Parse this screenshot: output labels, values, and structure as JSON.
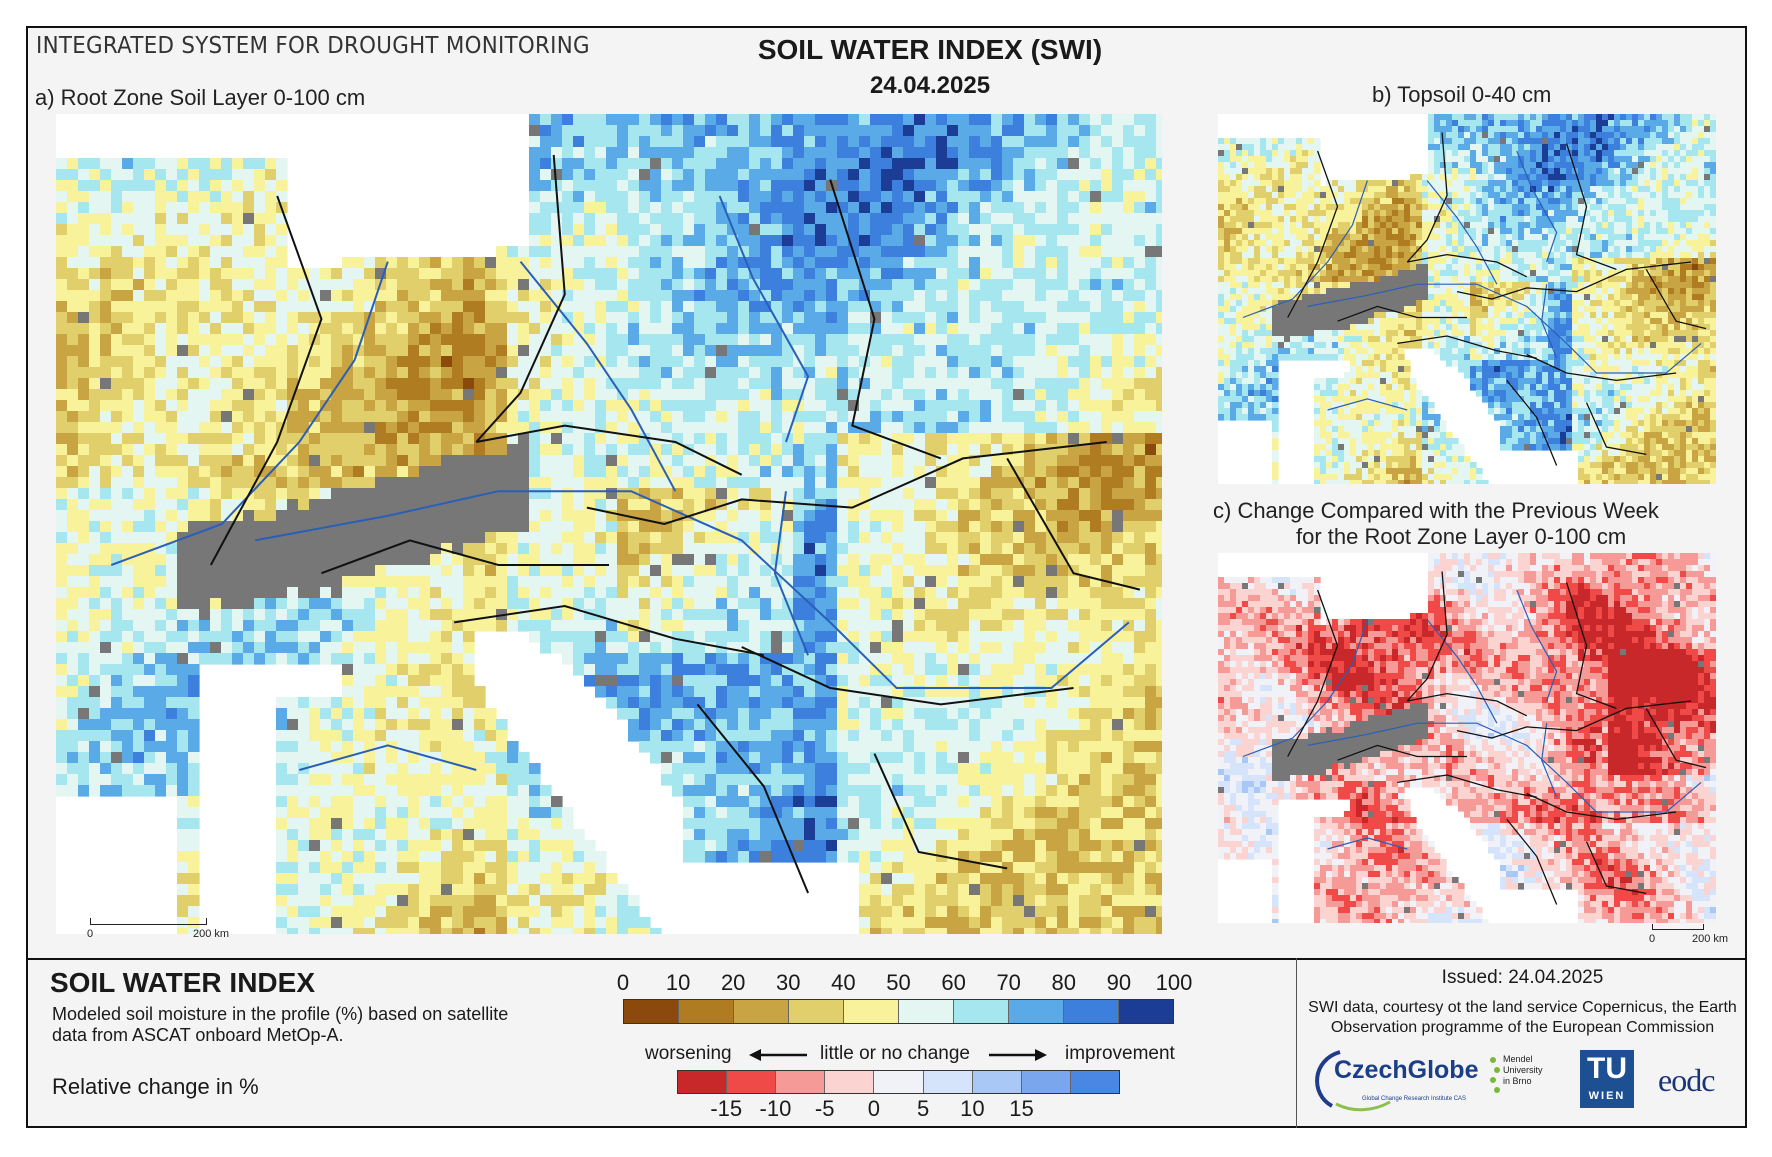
{
  "header": {
    "system_title": "INTEGRATED SYSTEM FOR DROUGHT MONITORING",
    "title": "SOIL WATER INDEX (SWI)",
    "date": "24.04.2025"
  },
  "panels": {
    "a": {
      "title": "a) Root Zone Soil Layer 0-100 cm",
      "scale_start": "0",
      "scale_end": "200 km"
    },
    "b": {
      "title": "b) Topsoil 0-40 cm"
    },
    "c": {
      "title_line1": "c) Change Compared with the Previous Week",
      "title_line2": "for the Root Zone Layer 0-100 cm",
      "scale_start": "0",
      "scale_end": "200 km"
    }
  },
  "legend": {
    "heading": "SOIL WATER INDEX",
    "description": "Modeled soil moisture in the profile (%) based on satellite data from ASCAT onboard MetOp-A.",
    "relative_label": "Relative change in %",
    "swi_ticks": [
      "0",
      "10",
      "20",
      "30",
      "40",
      "50",
      "60",
      "70",
      "80",
      "90",
      "100"
    ],
    "swi_colors": [
      "#8b4a0c",
      "#b07c22",
      "#c8a443",
      "#e0cf6a",
      "#f8f29a",
      "#e4f6f1",
      "#a6e7ef",
      "#5aaae8",
      "#3c7fdc",
      "#1c3d96"
    ],
    "change_labels": {
      "worsening": "worsening",
      "neutral": "little or no change",
      "improvement": "improvement"
    },
    "change_ticks": [
      "-15",
      "-10",
      "-5",
      "0",
      "5",
      "10",
      "15"
    ],
    "change_colors": [
      "#c8282a",
      "#ef4a47",
      "#f59a96",
      "#fbd3d0",
      "#f0f2f8",
      "#d6e4fb",
      "#aac8f5",
      "#7aa6ee",
      "#4a86e4"
    ]
  },
  "credits": {
    "issued": "Issued: 24.04.2025",
    "text": "SWI data, courtesy ot the land service Copernicus, the Earth Observation programme of the European Commission",
    "logos": {
      "czechglobe": "CzechGlobe",
      "czechglobe_sub": "Global Change Research Institute CAS",
      "mendel": [
        "Mendel",
        "University",
        "in Brno"
      ],
      "tuwien_big": "TU",
      "tuwien_small": "WIEN",
      "eodc": "eodc"
    }
  },
  "map_colors": {
    "sea": "#ffffff",
    "nodata": "#777777",
    "border": "#111111",
    "river": "#2a5fb8"
  }
}
